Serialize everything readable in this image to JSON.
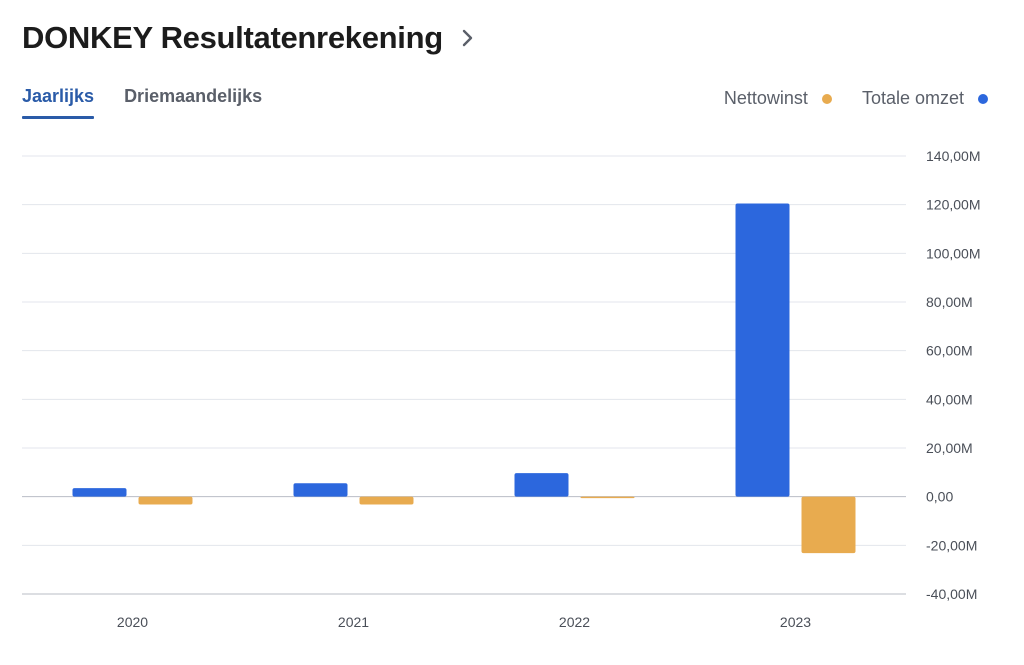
{
  "header": {
    "title": "DONKEY Resultatenrekening"
  },
  "tabs": [
    {
      "label": "Jaarlijks",
      "active": true
    },
    {
      "label": "Driemaandelijks",
      "active": false
    }
  ],
  "legend": [
    {
      "label": "Nettowinst",
      "color": "#e8ab4f"
    },
    {
      "label": "Totale omzet",
      "color": "#2c67dd"
    }
  ],
  "chart_data": {
    "type": "bar",
    "categories": [
      "2020",
      "2021",
      "2022",
      "2023"
    ],
    "series": [
      {
        "name": "Totale omzet",
        "color": "#2c67dd",
        "values": [
          3.5,
          5.5,
          9.7,
          120.5
        ]
      },
      {
        "name": "Nettowinst",
        "color": "#e8ab4f",
        "values": [
          -3.2,
          -3.2,
          -0.5,
          -23.2
        ]
      }
    ],
    "ylim": [
      -40,
      140
    ],
    "yticks": [
      140,
      120,
      100,
      80,
      60,
      40,
      20,
      0,
      -20,
      -40
    ],
    "ytick_labels": [
      "140,00M",
      "120,00M",
      "100,00M",
      "80,00M",
      "60,00M",
      "40,00M",
      "20,00M",
      "0,00",
      "-20,00M",
      "-40,00M"
    ],
    "grid": true,
    "legend_position": "top-right"
  }
}
